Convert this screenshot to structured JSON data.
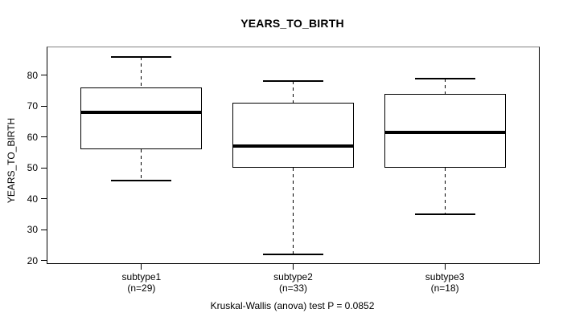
{
  "chart_data": {
    "type": "boxplot",
    "title": "YEARS_TO_BIRTH",
    "ylabel": "YEARS_TO_BIRTH",
    "caption": "Kruskal-Wallis (anova) test P = 0.0852",
    "yticks": [
      80,
      70,
      60,
      50,
      40,
      30,
      20
    ],
    "ylim": [
      19.2,
      89.0
    ],
    "grid": false,
    "legend": "none",
    "groups": [
      {
        "label": "subtype1",
        "n_label": "(n=29)",
        "whisker_low": 46,
        "q1": 56,
        "median": 68,
        "q3": 76,
        "whisker_high": 86
      },
      {
        "label": "subtype2",
        "n_label": "(n=33)",
        "whisker_low": 22,
        "q1": 50,
        "median": 57,
        "q3": 71,
        "whisker_high": 78
      },
      {
        "label": "subtype3",
        "n_label": "(n=18)",
        "whisker_low": 35,
        "q1": 50,
        "median": 61.5,
        "q3": 74,
        "whisker_high": 79
      }
    ],
    "colors": {
      "background": "#ffffff",
      "frame": "#000000",
      "frame_top": "#808080",
      "box_fill": "#ffffff",
      "line": "#000000",
      "text": "#000000"
    }
  }
}
